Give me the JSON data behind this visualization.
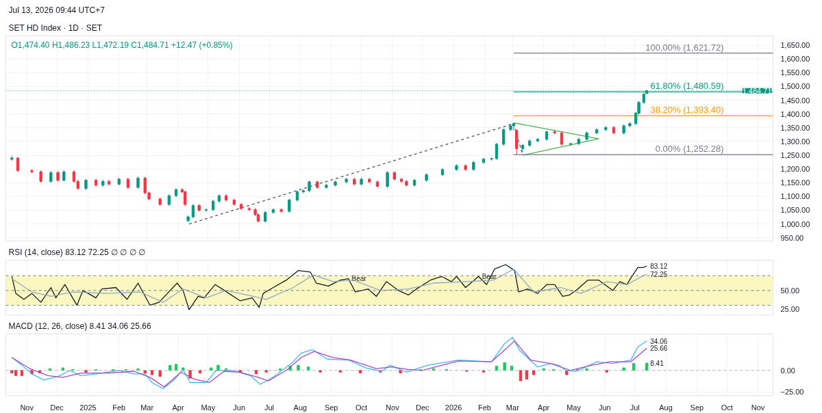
{
  "chart_data": [
    {
      "type": "candlestick",
      "title": "SET HD Index · 1D · SET",
      "subtitle": "O1,474.40  H1,486.23  L1,472.19  C1,484.71  +12.47 (+0.85%)",
      "annotations": [
        "Jul 13, 2026 09:44 UTC+7"
      ],
      "xticks": [
        {
          "value": "2024-11-01",
          "label": null
        },
        {
          "value": "2024-12-01",
          "label": null
        },
        {
          "value": "2025-01-01",
          "label": null
        },
        {
          "value": "2025-02-01",
          "label": null
        },
        {
          "value": "2025-03-01",
          "label": null
        },
        {
          "value": "2025-04-01",
          "label": null
        },
        {
          "value": "2025-05-01",
          "label": null
        },
        {
          "value": "2025-06-01",
          "label": null
        },
        {
          "value": "2025-07-01",
          "label": null
        },
        {
          "value": "2025-08-01",
          "label": null
        },
        {
          "value": "2025-09-01",
          "label": null
        },
        {
          "value": "2025-10-01",
          "label": null
        },
        {
          "value": "2025-11-01",
          "label": null
        },
        {
          "value": "2025-12-01",
          "label": null
        },
        {
          "value": "2026-01-01",
          "label": null
        },
        {
          "value": "2026-02-01",
          "label": null
        },
        {
          "value": "2026-03-01",
          "label": null
        },
        {
          "value": "2026-04-01",
          "label": null
        },
        {
          "value": "2026-05-01",
          "label": null
        },
        {
          "value": "2026-06-01",
          "label": null
        },
        {
          "value": "2026-07-01",
          "label": null
        },
        {
          "value": "2026-08-01",
          "label": null
        },
        {
          "value": "2026-09-01",
          "label": null
        },
        {
          "value": "2026-10-01",
          "label": null
        },
        {
          "value": "2026-11-01",
          "label": null
        }
      ],
      "x": [
        "2024-10-17",
        "2024-10-23",
        "2024-11-06",
        "2024-11-15",
        "2024-11-25",
        "2024-12-02",
        "2024-12-08",
        "2024-12-18",
        "2024-12-22",
        "2024-12-30",
        "2025-01-09",
        "2025-01-16",
        "2025-01-22",
        "2025-02-01",
        "2025-02-10",
        "2025-02-20",
        "2025-02-27",
        "2025-03-03",
        "2025-03-14",
        "2025-03-23",
        "2025-03-30",
        "2025-04-05",
        "2025-04-08",
        "2025-04-11",
        "2025-04-16",
        "2025-04-22",
        "2025-04-29",
        "2025-05-06",
        "2025-05-12",
        "2025-05-19",
        "2025-05-27",
        "2025-06-03",
        "2025-06-11",
        "2025-06-17",
        "2025-06-20",
        "2025-06-27",
        "2025-07-05",
        "2025-07-13",
        "2025-07-21",
        "2025-07-29",
        "2025-08-04",
        "2025-08-10",
        "2025-08-18",
        "2025-08-27",
        "2025-09-05",
        "2025-09-16",
        "2025-09-24",
        "2025-10-01",
        "2025-10-09",
        "2025-10-17",
        "2025-10-27",
        "2025-11-03",
        "2025-11-10",
        "2025-11-15",
        "2025-11-23",
        "2025-12-05",
        "2025-12-21",
        "2026-01-04",
        "2026-01-13",
        "2026-01-21",
        "2026-01-31",
        "2026-02-08",
        "2026-02-13",
        "2026-02-20",
        "2026-02-27",
        "2026-03-02",
        "2026-03-05",
        "2026-03-11",
        "2026-03-18",
        "2026-03-26",
        "2026-04-04",
        "2026-04-12",
        "2026-04-19",
        "2026-04-28",
        "2026-05-06",
        "2026-05-14",
        "2026-05-24",
        "2026-06-02",
        "2026-06-10",
        "2026-06-20",
        "2026-06-26",
        "2026-07-02",
        "2026-07-05",
        "2026-07-10",
        "2026-07-13"
      ],
      "ohlc": [
        [
          1235,
          1248,
          1230,
          1240
        ],
        [
          1240,
          1244,
          1189,
          1194
        ],
        [
          1194,
          1199,
          1185,
          1190
        ],
        [
          1190,
          1195,
          1150,
          1155
        ],
        [
          1155,
          1192,
          1150,
          1187
        ],
        [
          1187,
          1192,
          1154,
          1159
        ],
        [
          1159,
          1195,
          1154,
          1190
        ],
        [
          1190,
          1195,
          1150,
          1155
        ],
        [
          1155,
          1160,
          1124,
          1129
        ],
        [
          1129,
          1164,
          1124,
          1159
        ],
        [
          1159,
          1164,
          1136,
          1141
        ],
        [
          1141,
          1160,
          1136,
          1155
        ],
        [
          1155,
          1160,
          1140,
          1145
        ],
        [
          1145,
          1168,
          1140,
          1163
        ],
        [
          1163,
          1168,
          1128,
          1133
        ],
        [
          1133,
          1172,
          1128,
          1167
        ],
        [
          1167,
          1172,
          1108,
          1113
        ],
        [
          1113,
          1118,
          1086,
          1091
        ],
        [
          1091,
          1096,
          1066,
          1071
        ],
        [
          1071,
          1108,
          1066,
          1103
        ],
        [
          1103,
          1130,
          1098,
          1125
        ],
        [
          1125,
          1130,
          1112,
          1117
        ],
        [
          1117,
          1122,
          1066,
          1071
        ],
        [
          1012,
          1031,
          1006,
          1026
        ],
        [
          1026,
          1072,
          1021,
          1067
        ],
        [
          1067,
          1072,
          1045,
          1050
        ],
        [
          1050,
          1057,
          1045,
          1052
        ],
        [
          1052,
          1088,
          1047,
          1083
        ],
        [
          1083,
          1108,
          1078,
          1103
        ],
        [
          1103,
          1108,
          1082,
          1087
        ],
        [
          1087,
          1092,
          1066,
          1071
        ],
        [
          1071,
          1076,
          1051,
          1056
        ],
        [
          1056,
          1061,
          1047,
          1052
        ],
        [
          1052,
          1057,
          1029,
          1034
        ],
        [
          1034,
          1039,
          1005,
          1010
        ],
        [
          1010,
          1047,
          1005,
          1042
        ],
        [
          1042,
          1057,
          1037,
          1052
        ],
        [
          1052,
          1057,
          1041,
          1046
        ],
        [
          1046,
          1092,
          1041,
          1087
        ],
        [
          1087,
          1122,
          1082,
          1117
        ],
        [
          1117,
          1126,
          1112,
          1121
        ],
        [
          1121,
          1158,
          1116,
          1153
        ],
        [
          1153,
          1158,
          1128,
          1133
        ],
        [
          1133,
          1146,
          1128,
          1141
        ],
        [
          1141,
          1158,
          1136,
          1153
        ],
        [
          1153,
          1168,
          1148,
          1163
        ],
        [
          1163,
          1168,
          1140,
          1145
        ],
        [
          1145,
          1168,
          1140,
          1163
        ],
        [
          1163,
          1168,
          1148,
          1153
        ],
        [
          1153,
          1158,
          1132,
          1137
        ],
        [
          1137,
          1192,
          1132,
          1187
        ],
        [
          1187,
          1192,
          1158,
          1163
        ],
        [
          1163,
          1168,
          1150,
          1155
        ],
        [
          1155,
          1160,
          1136,
          1141
        ],
        [
          1141,
          1164,
          1136,
          1159
        ],
        [
          1159,
          1184,
          1154,
          1179
        ],
        [
          1179,
          1203,
          1174,
          1198
        ],
        [
          1198,
          1217,
          1193,
          1212
        ],
        [
          1212,
          1217,
          1193,
          1198
        ],
        [
          1198,
          1229,
          1193,
          1224
        ],
        [
          1224,
          1241,
          1219,
          1236
        ],
        [
          1236,
          1242,
          1230,
          1238
        ],
        [
          1238,
          1295,
          1233,
          1290
        ],
        [
          1290,
          1348,
          1285,
          1343
        ],
        [
          1343,
          1362,
          1338,
          1357
        ],
        [
          1357,
          1368,
          1340,
          1365
        ],
        [
          1340,
          1345,
          1252,
          1274
        ],
        [
          1274,
          1291,
          1262,
          1286
        ],
        [
          1286,
          1307,
          1281,
          1302
        ],
        [
          1302,
          1313,
          1297,
          1308
        ],
        [
          1308,
          1340,
          1303,
          1335
        ],
        [
          1335,
          1343,
          1326,
          1331
        ],
        [
          1331,
          1336,
          1285,
          1290
        ],
        [
          1290,
          1297,
          1283,
          1292
        ],
        [
          1292,
          1313,
          1287,
          1308
        ],
        [
          1308,
          1336,
          1303,
          1331
        ],
        [
          1331,
          1348,
          1326,
          1343
        ],
        [
          1343,
          1356,
          1338,
          1351
        ],
        [
          1351,
          1356,
          1326,
          1331
        ],
        [
          1331,
          1362,
          1326,
          1357
        ],
        [
          1357,
          1370,
          1352,
          1365
        ],
        [
          1365,
          1408,
          1360,
          1403
        ],
        [
          1403,
          1447,
          1398,
          1442
        ],
        [
          1442,
          1477,
          1437,
          1472
        ],
        [
          1474.4,
          1486.23,
          1472.19,
          1484.71
        ]
      ],
      "colors": [
        "#089981",
        "#f23645",
        "#f23645",
        "#f23645",
        "#089981",
        "#f23645",
        "#089981",
        "#f23645",
        "#f23645",
        "#089981",
        "#f23645",
        "#089981",
        "#f23645",
        "#089981",
        "#f23645",
        "#089981",
        "#f23645",
        "#f23645",
        "#f23645",
        "#089981",
        "#089981",
        "#f23645",
        "#f23645",
        "#089981",
        "#089981",
        "#f23645",
        "#089981",
        "#089981",
        "#089981",
        "#f23645",
        "#f23645",
        "#f23645",
        "#f23645",
        "#f23645",
        "#f23645",
        "#089981",
        "#089981",
        "#f23645",
        "#089981",
        "#089981",
        "#089981",
        "#089981",
        "#f23645",
        "#089981",
        "#089981",
        "#089981",
        "#f23645",
        "#089981",
        "#f23645",
        "#f23645",
        "#089981",
        "#f23645",
        "#f23645",
        "#f23645",
        "#089981",
        "#089981",
        "#089981",
        "#089981",
        "#f23645",
        "#089981",
        "#089981",
        "#089981",
        "#089981",
        "#089981",
        "#089981",
        "#089981",
        "#f23645",
        "#089981",
        "#089981",
        "#089981",
        "#089981",
        "#f23645",
        "#f23645",
        "#089981",
        "#089981",
        "#089981",
        "#089981",
        "#089981",
        "#f23645",
        "#089981",
        "#089981",
        "#089981",
        "#089981",
        "#089981",
        "#089981"
      ],
      "series": [
        {
          "type": "line",
          "color": "#555555",
          "line_style": "dashed",
          "x": [
            "2025-04-12",
            "2026-03-02",
            "2026-03-11"
          ],
          "values": [
            1000,
            1365,
            1252
          ]
        },
        {
          "type": "line",
          "color": "#4caf50",
          "x": [
            "2026-03-02",
            "2026-05-26",
            "2026-03-11"
          ],
          "values": [
            1368,
            1310,
            1250
          ]
        },
        {
          "type": "line",
          "name": "100.00% (1,621.72)",
          "color": "#787b86",
          "x": [
            "2026-03-02",
            "2026-11-16"
          ],
          "values": [
            1621.72,
            1621.72
          ]
        },
        {
          "type": "line",
          "name": "61.80% (1,480.59)",
          "color": "#089981",
          "x": [
            "2026-03-02",
            "2026-11-16"
          ],
          "values": [
            1480.59,
            1480.59
          ]
        },
        {
          "type": "line",
          "name": "38.20% (1,393.40)",
          "color": "#ff9800",
          "x": [
            "2026-03-02",
            "2026-11-16"
          ],
          "values": [
            1393.4,
            1393.4
          ]
        },
        {
          "type": "line",
          "name": "0.00% (1,252.28)",
          "color": "#787b86",
          "x": [
            "2026-03-02",
            "2026-11-16"
          ],
          "values": [
            1252.28,
            1252.28
          ]
        }
      ],
      "ref_lines": [
        {
          "axis": "y",
          "value": 1484.71,
          "label": "1,484.71",
          "color": "#089981",
          "line_style": "dotted"
        }
      ],
      "xlim": [
        "2024-10-11",
        "2026-11-16"
      ],
      "ylim": [
        938,
        1684
      ],
      "yticks": [
        {
          "value": 950,
          "label": "950.00"
        },
        {
          "value": 1000,
          "label": "1,000.00"
        },
        {
          "value": 1050,
          "label": "1,050.00"
        },
        {
          "value": 1100,
          "label": "1,100.00"
        },
        {
          "value": 1150,
          "label": "1,150.00"
        },
        {
          "value": 1200,
          "label": "1,200.00"
        },
        {
          "value": 1250,
          "label": "1,250.00"
        },
        {
          "value": 1300,
          "label": "1,300.00"
        },
        {
          "value": 1350,
          "label": "1,350.00"
        },
        {
          "value": 1400,
          "label": "1,400.00"
        },
        {
          "value": 1450,
          "label": "1,450.00"
        },
        {
          "value": 1500,
          "label": "1,500.00"
        },
        {
          "value": 1550,
          "label": "1,550.00"
        },
        {
          "value": 1600,
          "label": "1,600.00"
        },
        {
          "value": 1650,
          "label": "1,650.00"
        }
      ],
      "tick_labels": "y",
      "grid": true
    },
    {
      "type": "line",
      "title": "RSI (14, close)  83.12  72.25  ∅ ∅ ∅ ∅",
      "series": [
        {
          "color": "#131722",
          "x": [
            "2024-10-17",
            "2024-10-21",
            "2024-10-29",
            "2024-11-06",
            "2024-11-15",
            "2024-11-25",
            "2024-11-30",
            "2024-12-09",
            "2024-12-21",
            "2024-12-27",
            "2025-01-09",
            "2025-01-15",
            "2025-01-29",
            "2025-02-09",
            "2025-02-20",
            "2025-03-04",
            "2025-03-13",
            "2025-03-31",
            "2025-04-06",
            "2025-04-12",
            "2025-04-21",
            "2025-04-27",
            "2025-05-08",
            "2025-05-15",
            "2025-06-02",
            "2025-06-14",
            "2025-06-21",
            "2025-06-25",
            "2025-07-05",
            "2025-07-18",
            "2025-07-30",
            "2025-08-11",
            "2025-08-17",
            "2025-08-29",
            "2025-09-10",
            "2025-09-18",
            "2025-09-25",
            "2025-10-08",
            "2025-10-16",
            "2025-10-26",
            "2025-11-07",
            "2025-11-17",
            "2025-11-25",
            "2025-12-09",
            "2025-12-20",
            "2025-12-30",
            "2026-01-04",
            "2026-01-13",
            "2026-01-26",
            "2026-02-03",
            "2026-02-11",
            "2026-02-22",
            "2026-03-03",
            "2026-03-07",
            "2026-03-16",
            "2026-03-26",
            "2026-04-04",
            "2026-04-12",
            "2026-04-20",
            "2026-04-27",
            "2026-05-05",
            "2026-05-15",
            "2026-05-26",
            "2026-06-09",
            "2026-06-16",
            "2026-06-23",
            "2026-06-29",
            "2026-07-04",
            "2026-07-09",
            "2026-07-13"
          ],
          "values": [
            69,
            46,
            38,
            46,
            34,
            54,
            40,
            58,
            30,
            50,
            40,
            52,
            54,
            38,
            60,
            30,
            34,
            60,
            50,
            24,
            42,
            40,
            58,
            52,
            36,
            40,
            27,
            46,
            54,
            64,
            77,
            75,
            60,
            56,
            64,
            66,
            48,
            52,
            42,
            62,
            50,
            44,
            52,
            64,
            69,
            62,
            69,
            54,
            69,
            58,
            79,
            85,
            77,
            48,
            52,
            46,
            58,
            58,
            42,
            44,
            52,
            64,
            64,
            50,
            62,
            58,
            71,
            81,
            81,
            83.12
          ]
        },
        {
          "color": "#90a9c4",
          "x": [
            "2024-10-17",
            "2024-11-06",
            "2024-11-25",
            "2024-12-17",
            "2025-01-19",
            "2025-02-22",
            "2025-03-17",
            "2025-04-06",
            "2025-04-29",
            "2025-05-19",
            "2025-06-15",
            "2025-06-28",
            "2025-07-25",
            "2025-08-14",
            "2025-09-03",
            "2025-09-23",
            "2025-10-20",
            "2025-11-17",
            "2025-12-12",
            "2026-01-14",
            "2026-02-10",
            "2026-03-02",
            "2026-03-22",
            "2026-04-18",
            "2026-05-08",
            "2026-06-03",
            "2026-06-23",
            "2026-07-13"
          ],
          "values": [
            66,
            48,
            42,
            48,
            46,
            48,
            34,
            52,
            40,
            50,
            42,
            38,
            54,
            71,
            62,
            64,
            50,
            52,
            60,
            62,
            64,
            79,
            48,
            54,
            46,
            62,
            58,
            72.25
          ]
        }
      ],
      "bands": [
        {
          "axis": "y",
          "from": 30,
          "to": 70,
          "color": "#faf8c0"
        }
      ],
      "ref_lines": [
        {
          "axis": "y",
          "value": 70,
          "color": "#787b86",
          "line_style": "dashed"
        },
        {
          "axis": "y",
          "value": 50,
          "color": "#787b86",
          "line_style": "dashed"
        },
        {
          "axis": "y",
          "value": 30,
          "color": "#787b86",
          "line_style": "dashed"
        }
      ],
      "annotations": [
        {
          "text": "Bear",
          "x": "2025-09-18",
          "y": 66
        },
        {
          "text": "Bear",
          "x": "2026-01-26",
          "y": 69
        },
        {
          "text": "83.12",
          "x": "2026-07-13",
          "y": 83.12
        },
        {
          "text": "72.25",
          "x": "2026-07-13",
          "y": 72.25
        }
      ],
      "xlim": [
        "2024-10-11",
        "2026-11-16"
      ],
      "xticks": [
        {
          "value": "2024-11-01",
          "label": null
        },
        {
          "value": "2024-12-01",
          "label": null
        },
        {
          "value": "2025-01-01",
          "label": null
        },
        {
          "value": "2025-02-01",
          "label": null
        },
        {
          "value": "2025-03-01",
          "label": null
        },
        {
          "value": "2025-04-01",
          "label": null
        },
        {
          "value": "2025-05-01",
          "label": null
        },
        {
          "value": "2025-06-01",
          "label": null
        },
        {
          "value": "2025-07-01",
          "label": null
        },
        {
          "value": "2025-08-01",
          "label": null
        },
        {
          "value": "2025-09-01",
          "label": null
        },
        {
          "value": "2025-10-01",
          "label": null
        },
        {
          "value": "2025-11-01",
          "label": null
        },
        {
          "value": "2025-12-01",
          "label": null
        },
        {
          "value": "2026-01-01",
          "label": null
        },
        {
          "value": "2026-02-01",
          "label": null
        },
        {
          "value": "2026-03-01",
          "label": null
        },
        {
          "value": "2026-04-01",
          "label": null
        },
        {
          "value": "2026-05-01",
          "label": null
        },
        {
          "value": "2026-06-01",
          "label": null
        },
        {
          "value": "2026-07-01",
          "label": null
        },
        {
          "value": "2026-08-01",
          "label": null
        },
        {
          "value": "2026-09-01",
          "label": null
        },
        {
          "value": "2026-10-01",
          "label": null
        },
        {
          "value": "2026-11-01",
          "label": null
        }
      ],
      "ylim": [
        17,
        91
      ],
      "yticks": [
        {
          "value": 25,
          "label": "25.00"
        },
        {
          "value": 50,
          "label": "50.00"
        }
      ],
      "tick_labels": "y",
      "grid": true
    },
    {
      "type": "bar",
      "title": "MACD (12, 26, close)  8.41  34.06  25.66",
      "series": [
        {
          "type": "bar",
          "color": "#22c55e",
          "x": [
            "2024-11-24",
            "2024-12-07",
            "2024-12-17",
            "2025-01-09",
            "2025-01-26",
            "2025-02-08",
            "2025-02-20",
            "2025-03-24",
            "2025-03-30",
            "2025-04-06",
            "2025-05-04",
            "2025-05-11",
            "2025-05-19",
            "2025-07-12",
            "2025-07-22",
            "2025-07-30",
            "2025-08-09",
            "2025-11-29",
            "2025-12-12",
            "2025-12-25",
            "2026-02-13",
            "2026-02-21",
            "2026-02-28",
            "2026-04-01",
            "2026-04-11",
            "2026-05-05",
            "2026-05-14",
            "2026-06-20",
            "2026-06-30",
            "2026-07-13"
          ],
          "values": [
            2,
            3,
            1,
            1,
            1,
            1,
            2,
            6,
            7,
            3,
            3,
            6,
            2,
            2,
            5,
            6,
            4,
            1,
            2,
            1,
            5,
            9,
            5,
            2,
            1,
            1,
            2,
            3,
            8,
            8.41
          ]
        },
        {
          "type": "bar",
          "color": "#f23645",
          "x": [
            "2024-10-17",
            "2024-10-21",
            "2024-10-27",
            "2024-11-06",
            "2024-11-14",
            "2024-12-30",
            "2025-02-27",
            "2025-03-06",
            "2025-03-14",
            "2025-04-13",
            "2025-04-23",
            "2025-06-02",
            "2025-06-18",
            "2025-06-28",
            "2025-08-21",
            "2025-09-10",
            "2025-09-30",
            "2025-10-20",
            "2025-11-09",
            "2026-01-14",
            "2026-01-31",
            "2026-03-09",
            "2026-03-15",
            "2026-03-22",
            "2026-04-24",
            "2026-06-03"
          ],
          "values": [
            -3,
            -6,
            -6,
            -4,
            -3,
            -2,
            -3,
            -5,
            -7,
            -9,
            -3,
            -2,
            -4,
            -2,
            -2,
            -2,
            -3,
            -2,
            -3,
            -1,
            -2,
            -12,
            -10,
            -5,
            -5,
            -2
          ]
        },
        {
          "type": "line",
          "color": "#41b8f0",
          "x": [
            "2024-10-17",
            "2024-10-27",
            "2024-11-06",
            "2024-11-18",
            "2024-12-02",
            "2024-12-14",
            "2024-12-25",
            "2025-01-09",
            "2025-02-01",
            "2025-02-16",
            "2025-02-27",
            "2025-03-06",
            "2025-03-17",
            "2025-03-27",
            "2025-04-06",
            "2025-04-13",
            "2025-04-29",
            "2025-05-09",
            "2025-05-25",
            "2025-06-12",
            "2025-06-22",
            "2025-07-02",
            "2025-07-15",
            "2025-07-23",
            "2025-08-02",
            "2025-08-13",
            "2025-08-28",
            "2025-09-18",
            "2025-10-05",
            "2025-10-21",
            "2025-10-30",
            "2025-11-15",
            "2025-12-06",
            "2026-01-06",
            "2026-02-08",
            "2026-02-21",
            "2026-03-01",
            "2026-03-08",
            "2026-03-26",
            "2026-04-08",
            "2026-04-16",
            "2026-04-23",
            "2026-05-04",
            "2026-05-24",
            "2026-06-09",
            "2026-06-27",
            "2026-07-04",
            "2026-07-13"
          ],
          "values": [
            15,
            6,
            -4,
            -11,
            -7,
            0,
            -6,
            -4,
            0,
            -4,
            -4,
            -14,
            -21,
            -12,
            1,
            -14,
            -14,
            0,
            0,
            -6,
            -16,
            -10,
            1,
            8,
            20,
            24,
            13,
            12,
            3,
            -1,
            6,
            -2,
            6,
            12,
            10,
            31,
            38,
            23,
            4,
            8,
            6,
            0,
            -1,
            10,
            8,
            12,
            27,
            34.06
          ]
        },
        {
          "type": "line",
          "color": "#ab47bc",
          "x": [
            "2024-10-17",
            "2024-11-04",
            "2024-11-22",
            "2024-12-07",
            "2024-12-25",
            "2025-01-22",
            "2025-02-16",
            "2025-03-04",
            "2025-03-18",
            "2025-04-04",
            "2025-04-17",
            "2025-05-02",
            "2025-05-17",
            "2025-06-02",
            "2025-06-20",
            "2025-06-30",
            "2025-07-18",
            "2025-08-02",
            "2025-08-15",
            "2025-09-02",
            "2025-09-20",
            "2025-10-16",
            "2025-10-31",
            "2025-11-17",
            "2025-12-01",
            "2026-01-06",
            "2026-02-08",
            "2026-03-03",
            "2026-03-19",
            "2026-04-08",
            "2026-04-28",
            "2026-05-19",
            "2026-06-06",
            "2026-06-27",
            "2026-07-13"
          ],
          "values": [
            15,
            2,
            -6,
            -8,
            -3,
            -3,
            -1,
            -8,
            -19,
            -2,
            -10,
            -14,
            -1,
            -2,
            -8,
            -12,
            0,
            15,
            22,
            15,
            12,
            2,
            4,
            1,
            0,
            11,
            10,
            34,
            12,
            8,
            0,
            6,
            10,
            10,
            25.66
          ]
        }
      ],
      "ref_lines": [
        {
          "axis": "y",
          "value": 0,
          "color": "#b2b5be",
          "line_style": "dashed"
        }
      ],
      "annotations": [
        {
          "text": "34.06",
          "x": "2026-07-13",
          "y": 34.06
        },
        {
          "text": "25.66",
          "x": "2026-07-13",
          "y": 25.66
        },
        {
          "text": "8.41",
          "x": "2026-07-13",
          "y": 8.41
        }
      ],
      "xlim": [
        "2024-10-11",
        "2026-11-16"
      ],
      "xticks": [
        {
          "value": "2024-11-01",
          "label": "Nov"
        },
        {
          "value": "2024-12-01",
          "label": "Dec"
        },
        {
          "value": "2025-01-01",
          "label": "2025"
        },
        {
          "value": "2025-02-01",
          "label": "Feb"
        },
        {
          "value": "2025-03-01",
          "label": "Mar"
        },
        {
          "value": "2025-04-01",
          "label": "Apr"
        },
        {
          "value": "2025-05-01",
          "label": "May"
        },
        {
          "value": "2025-06-01",
          "label": "Jun"
        },
        {
          "value": "2025-07-01",
          "label": "Jul"
        },
        {
          "value": "2025-08-01",
          "label": "Aug"
        },
        {
          "value": "2025-09-01",
          "label": "Sep"
        },
        {
          "value": "2025-10-01",
          "label": "Oct"
        },
        {
          "value": "2025-11-01",
          "label": "Nov"
        },
        {
          "value": "2025-12-01",
          "label": "Dec"
        },
        {
          "value": "2026-01-01",
          "label": "2026"
        },
        {
          "value": "2026-02-01",
          "label": "Feb"
        },
        {
          "value": "2026-03-01",
          "label": "Mar"
        },
        {
          "value": "2026-04-01",
          "label": "Apr"
        },
        {
          "value": "2026-05-01",
          "label": "May"
        },
        {
          "value": "2026-06-01",
          "label": "Jun"
        },
        {
          "value": "2026-07-01",
          "label": "Jul"
        },
        {
          "value": "2026-08-01",
          "label": "Aug"
        },
        {
          "value": "2026-09-01",
          "label": "Sep"
        },
        {
          "value": "2026-10-01",
          "label": "Oct"
        },
        {
          "value": "2026-11-01",
          "label": "Nov"
        }
      ],
      "ylim": [
        -29,
        42
      ],
      "yticks": [
        {
          "value": -25,
          "label": "−25.00"
        },
        {
          "value": 0,
          "label": "0.00"
        }
      ],
      "grid": true
    }
  ]
}
